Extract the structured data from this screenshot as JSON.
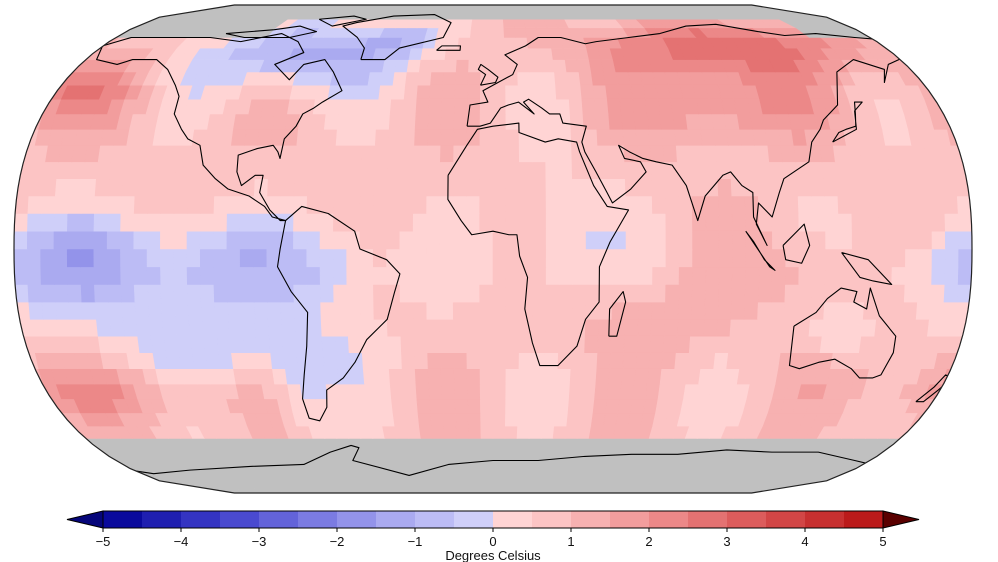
{
  "map": {
    "projection": "Robinson",
    "missing_color": "#c0c0c0",
    "coastline_color": "#000000",
    "regions": [
      {
        "name": "Arctic Ocean / far north",
        "anomaly": null
      },
      {
        "name": "Northern Canada / Baffin region",
        "anomaly": -1.5
      },
      {
        "name": "Greenland",
        "anomaly": -0.5
      },
      {
        "name": "Eastern North America",
        "anomaly": 0.5
      },
      {
        "name": "North Pacific",
        "anomaly": 1.5
      },
      {
        "name": "Northern Siberia",
        "anomaly": 2.5
      },
      {
        "name": "Central Asia / Mongolia",
        "anomaly": 1.8
      },
      {
        "name": "Europe",
        "anomaly": 0.8
      },
      {
        "name": "Tropical Eastern Pacific",
        "anomaly": -1.3
      },
      {
        "name": "Central/Eastern Africa",
        "anomaly": -0.5
      },
      {
        "name": "South America (north)",
        "anomaly": -0.4
      },
      {
        "name": "Indian Ocean",
        "anomaly": 0.6
      },
      {
        "name": "Australia",
        "anomaly": 0.7
      },
      {
        "name": "South Pacific",
        "anomaly": 1.2
      },
      {
        "name": "Southern Ocean",
        "anomaly": 0.5
      },
      {
        "name": "Antarctica",
        "anomaly": null
      }
    ]
  },
  "colorbar": {
    "min": -5,
    "max": 5,
    "ticks": [
      "−5",
      "−4",
      "−3",
      "−2",
      "−1",
      "0",
      "1",
      "2",
      "3",
      "4",
      "5"
    ],
    "colors": [
      "#0a0a9c",
      "#1f1fb0",
      "#3434c2",
      "#4a4ad0",
      "#6363d9",
      "#7b7be2",
      "#9393ea",
      "#aaaaf0",
      "#bcbcf5",
      "#cfcff9",
      "#ffd4d4",
      "#fcc4c4",
      "#f7b1b1",
      "#f29d9d",
      "#ec8888",
      "#e47272",
      "#dc5c5c",
      "#d24646",
      "#c73030",
      "#bb1a1a"
    ],
    "under_color": "#06067a",
    "over_color": "#5a0000",
    "caption": "Degrees Celsius"
  }
}
